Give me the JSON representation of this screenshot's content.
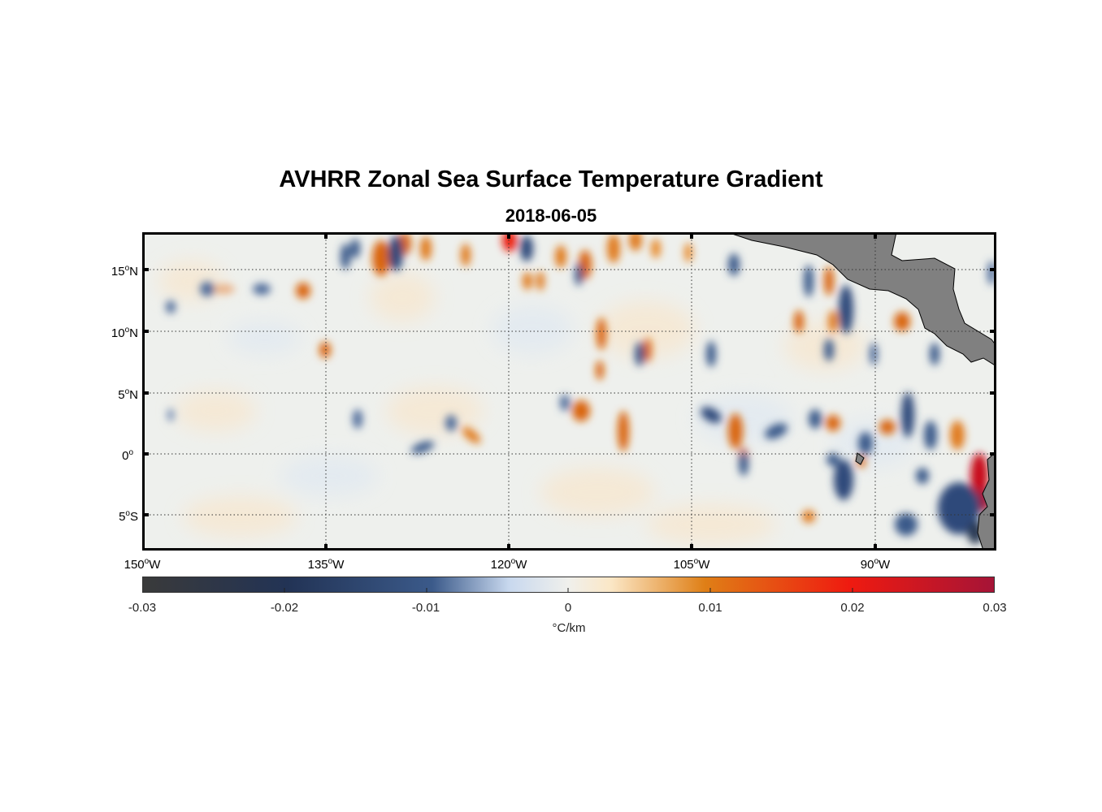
{
  "title": "AVHRR Zonal Sea Surface Temperature Gradient",
  "subtitle": "2018-06-05",
  "map": {
    "lat_labels": [
      {
        "deg": "15",
        "hem": "N"
      },
      {
        "deg": "10",
        "hem": "N"
      },
      {
        "deg": "5",
        "hem": "N"
      },
      {
        "deg": "0",
        "hem": ""
      },
      {
        "deg": "5",
        "hem": "S"
      }
    ],
    "lon_labels": [
      {
        "deg": "150",
        "hem": "W"
      },
      {
        "deg": "135",
        "hem": "W"
      },
      {
        "deg": "120",
        "hem": "W"
      },
      {
        "deg": "105",
        "hem": "W"
      },
      {
        "deg": "90",
        "hem": "W"
      }
    ],
    "land_color": "#808080",
    "frame_color": "#000000"
  },
  "colorbar": {
    "ticks": [
      "-0.03",
      "-0.02",
      "-0.01",
      "0",
      "0.01",
      "0.02",
      "0.03"
    ],
    "unit_label": "°C/km",
    "range": [
      -0.03,
      0.03
    ],
    "colors": [
      "#3a3a3a",
      "#223355",
      "#3b5a8a",
      "#c8d8ee",
      "#f0f0ec",
      "#fbe7c6",
      "#df7f16",
      "#ef1a10",
      "#a51437"
    ]
  }
}
